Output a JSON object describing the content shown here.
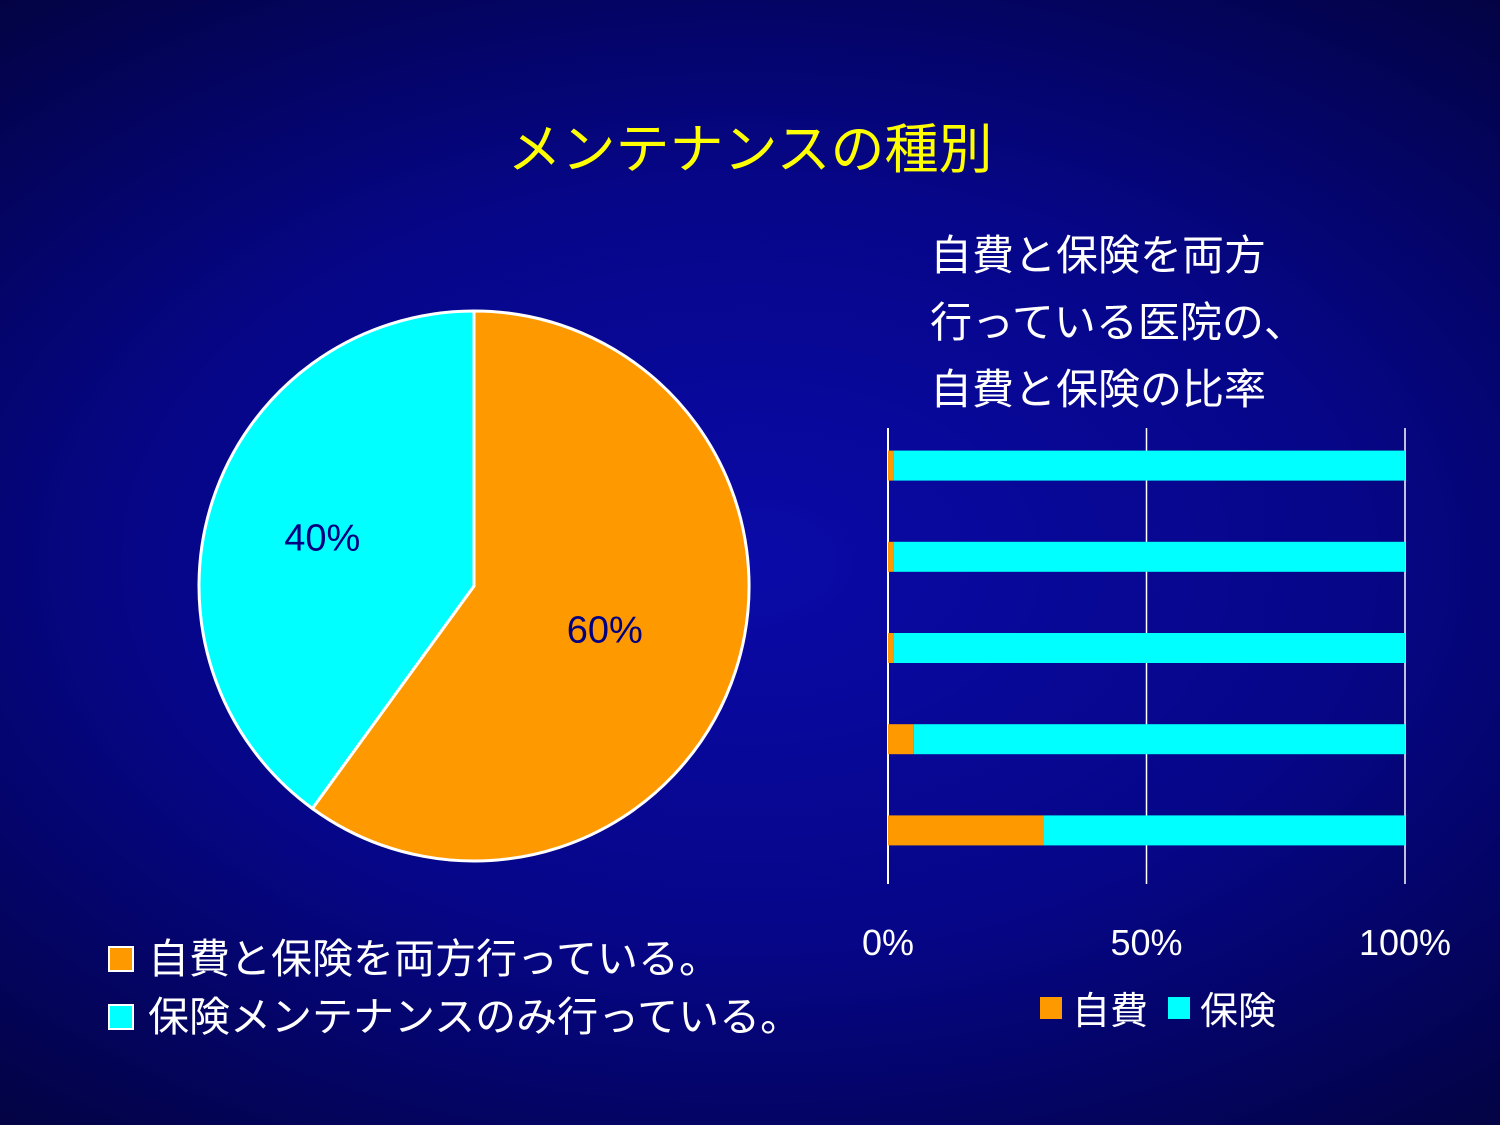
{
  "slide": {
    "title": "メンテナンスの種別",
    "subtitle_lines": [
      "自費と保険を両方",
      "行っている医院の、",
      "自費と保険の比率"
    ]
  },
  "colors": {
    "orange": "#ff9900",
    "cyan": "#00ffff",
    "title_yellow": "#ffff00",
    "label_navy": "#000080"
  },
  "legend": [
    {
      "label": "自費と保険を両方行っている。",
      "color": "#ff9900"
    },
    {
      "label": "保険メンテナンスのみ行っている。",
      "color": "#00ffff"
    }
  ],
  "chart_data": [
    {
      "type": "pie",
      "categories": [
        "自費と保険を両方行っている。",
        "保険メンテナンスのみ行っている。"
      ],
      "values": [
        60,
        40
      ],
      "data_labels": [
        "60%",
        "40%"
      ],
      "colors": [
        "#ff9900",
        "#00ffff"
      ],
      "legend_position": "bottom-left"
    },
    {
      "type": "bar",
      "orientation": "horizontal",
      "stacked": "percent",
      "title": "自費と保険を両方行っている医院の、自費と保険の比率",
      "series": [
        {
          "name": "自費",
          "color": "#ff9900",
          "values": [
            1,
            1,
            1,
            5,
            30
          ]
        },
        {
          "name": "保険",
          "color": "#00ffff",
          "values": [
            99,
            99,
            99,
            95,
            70
          ]
        }
      ],
      "x_ticks": [
        "0%",
        "50%",
        "100%"
      ],
      "xlim": [
        0,
        100
      ],
      "grid": "vertical",
      "legend_position": "bottom"
    }
  ]
}
